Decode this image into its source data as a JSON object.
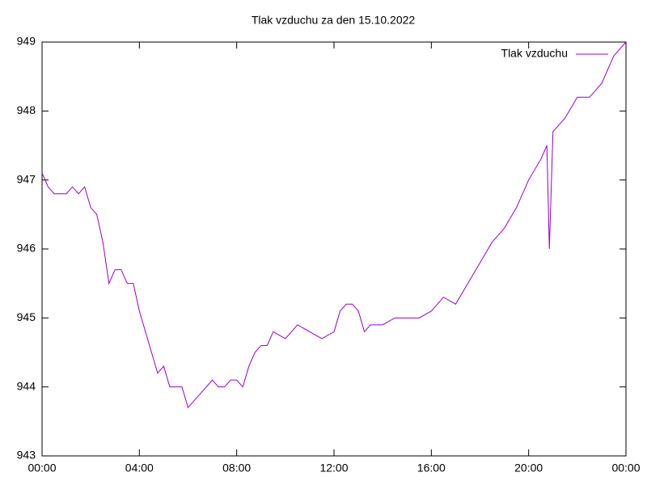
{
  "chart_data": {
    "type": "line",
    "title": "Tlak vzduchu za den 15.10.2022",
    "x": [
      0,
      0.25,
      0.5,
      1.0,
      1.25,
      1.5,
      1.75,
      2.0,
      2.25,
      2.5,
      2.75,
      3.0,
      3.25,
      3.5,
      3.75,
      4.0,
      4.25,
      4.5,
      4.75,
      5.0,
      5.25,
      5.5,
      5.75,
      6.0,
      6.25,
      6.5,
      6.75,
      7.0,
      7.25,
      7.5,
      7.75,
      8.0,
      8.25,
      8.5,
      8.75,
      9.0,
      9.25,
      9.5,
      10.0,
      10.5,
      11.0,
      11.5,
      12.0,
      12.25,
      12.5,
      12.75,
      13.0,
      13.25,
      13.5,
      14.0,
      14.5,
      15.0,
      15.5,
      16.0,
      16.5,
      17.0,
      17.5,
      18.0,
      18.5,
      19.0,
      19.5,
      20.0,
      20.5,
      20.75,
      20.85,
      21.0,
      21.5,
      22.0,
      22.5,
      23.0,
      23.5,
      24.0
    ],
    "series": [
      {
        "name": "Tlak vzduchu",
        "color": "#9400d3",
        "values": [
          947.1,
          946.9,
          946.8,
          946.8,
          946.9,
          946.8,
          946.9,
          946.6,
          946.5,
          946.1,
          945.5,
          945.7,
          945.7,
          945.5,
          945.5,
          945.1,
          944.8,
          944.5,
          944.2,
          944.3,
          944.0,
          944.0,
          944.0,
          943.7,
          943.8,
          943.9,
          944.0,
          944.1,
          944.0,
          944.0,
          944.1,
          944.1,
          944.0,
          944.3,
          944.5,
          944.6,
          944.6,
          944.8,
          944.7,
          944.9,
          944.8,
          944.7,
          944.8,
          945.1,
          945.2,
          945.2,
          945.1,
          944.8,
          944.9,
          944.9,
          945.0,
          945.0,
          945.0,
          945.1,
          945.3,
          945.2,
          945.5,
          945.8,
          946.1,
          946.3,
          946.6,
          947.0,
          947.3,
          947.5,
          946.0,
          947.7,
          947.9,
          948.2,
          948.2,
          948.4,
          948.8,
          949.0
        ]
      }
    ],
    "xlim": [
      0,
      24
    ],
    "xticks": [
      {
        "value": 0,
        "label": "00:00"
      },
      {
        "value": 4,
        "label": "04:00"
      },
      {
        "value": 8,
        "label": "08:00"
      },
      {
        "value": 12,
        "label": "12:00"
      },
      {
        "value": 16,
        "label": "16:00"
      },
      {
        "value": 20,
        "label": "20:00"
      },
      {
        "value": 24,
        "label": "00:00"
      }
    ],
    "ylim": [
      943,
      949
    ],
    "yticks": [
      943,
      944,
      945,
      946,
      947,
      948,
      949
    ],
    "grid": false,
    "legend": "top-right"
  }
}
